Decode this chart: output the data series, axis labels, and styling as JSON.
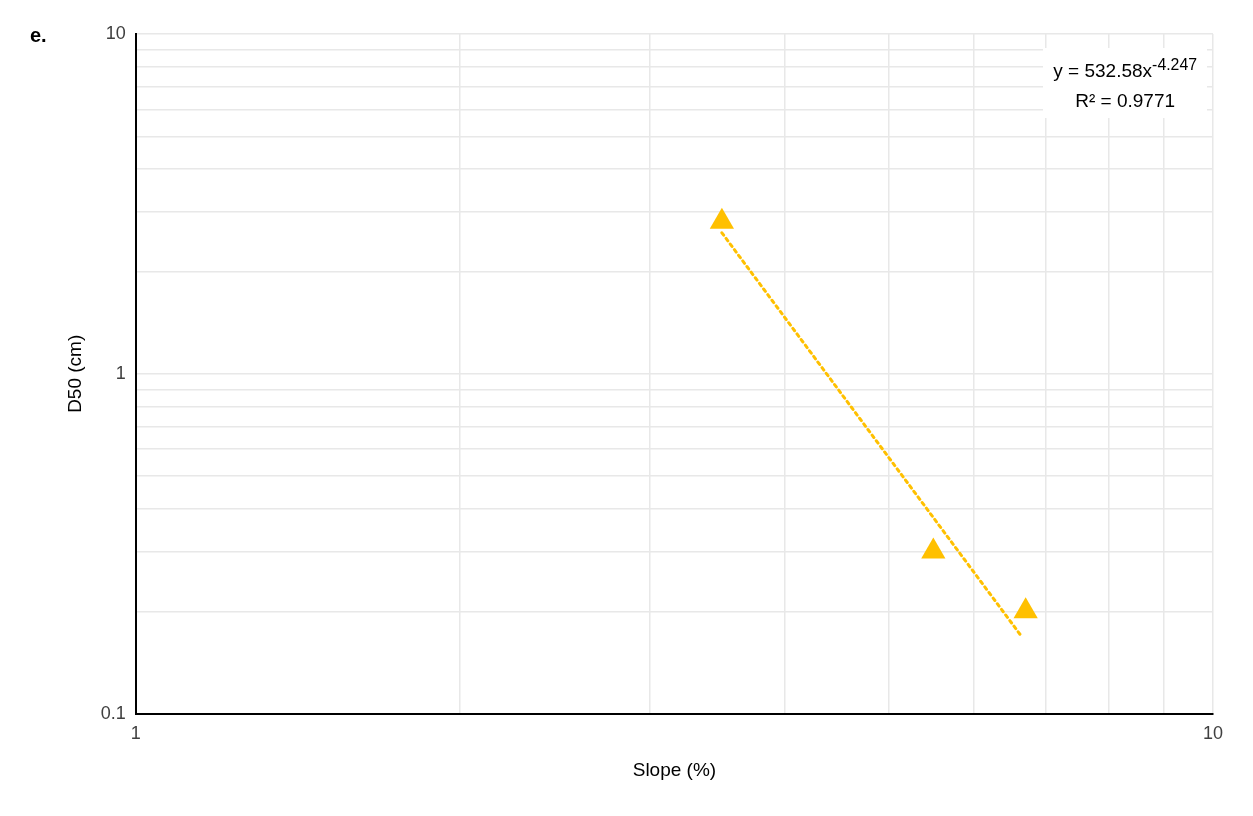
{
  "chart_data": {
    "type": "scatter",
    "title": "e.",
    "xlabel": "Slope (%)",
    "ylabel": "D50 (cm)",
    "annotations": [
      "y = 532.58x$^{-4.247}$",
      "R² = 0.9771"
    ],
    "series": [
      {
        "color": "#ffc000",
        "x": [
          3.5,
          5.5,
          6.7
        ],
        "values": [
          2.8,
          0.3,
          0.2
        ],
        "marker": "triangle"
      },
      {
        "type": "line",
        "color": "#ffc000",
        "x": [
          3.5,
          6.63
        ],
        "values": [
          2.6,
          0.17
        ],
        "line_style": "dotted",
        "marker": "none"
      }
    ],
    "log": "xy",
    "grid": true,
    "legend": false,
    "xlim": [
      1,
      10
    ],
    "ylim": [
      0.1,
      10
    ],
    "xticks": [
      1,
      {
        "value": 2,
        "label": null
      },
      {
        "value": 3,
        "label": null
      },
      {
        "value": 4,
        "label": null
      },
      {
        "value": 5,
        "label": null
      },
      {
        "value": 6,
        "label": null
      },
      {
        "value": 7,
        "label": null
      },
      {
        "value": 8,
        "label": null
      },
      {
        "value": 9,
        "label": null
      },
      10
    ],
    "yticks": [
      0.1,
      {
        "value": 0.2,
        "label": null
      },
      {
        "value": 0.3,
        "label": null
      },
      {
        "value": 0.4,
        "label": null
      },
      {
        "value": 0.5,
        "label": null
      },
      {
        "value": 0.6,
        "label": null
      },
      {
        "value": 0.7,
        "label": null
      },
      {
        "value": 0.8,
        "label": null
      },
      {
        "value": 0.9,
        "label": null
      },
      1,
      {
        "value": 2,
        "label": null
      },
      {
        "value": 3,
        "label": null
      },
      {
        "value": 4,
        "label": null
      },
      {
        "value": 5,
        "label": null
      },
      {
        "value": 6,
        "label": null
      },
      {
        "value": 7,
        "label": null
      },
      {
        "value": 8,
        "label": null
      },
      {
        "value": 9,
        "label": null
      },
      10
    ]
  }
}
